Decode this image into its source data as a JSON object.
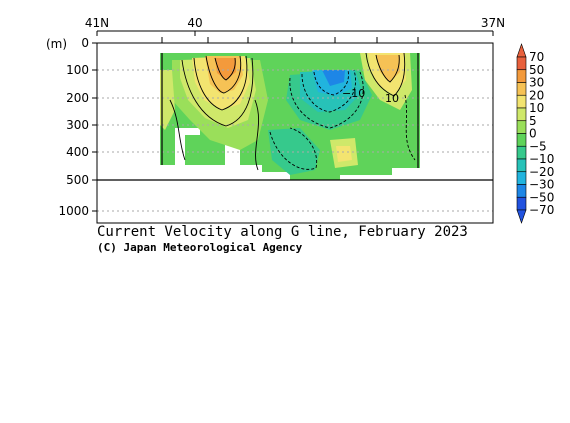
{
  "chart_data": {
    "type": "heatmap",
    "title": "Current Velocity along G line, February 2023",
    "credit": "(C) Japan Meteorological Agency",
    "ylabel": "(m)",
    "x_ticks": [
      "41N",
      "40",
      "37N"
    ],
    "y_ticks_upper": [
      "0",
      "100",
      "200",
      "300",
      "400",
      "500"
    ],
    "y_ticks_lower": [
      "1000"
    ],
    "ylim_upper": [
      0,
      500
    ],
    "y_axis_break": 500,
    "colorbar": {
      "labels": [
        "70",
        "50",
        "30",
        "20",
        "10",
        "5",
        "0",
        "−5",
        "−10",
        "−20",
        "−30",
        "−50",
        "−70"
      ],
      "colors": [
        "#e8603c",
        "#f39a3c",
        "#f6c255",
        "#f3e470",
        "#cfe86a",
        "#9adf5a",
        "#5fd35a",
        "#36c98c",
        "#27c2b8",
        "#21b4de",
        "#1d86e6",
        "#2152df"
      ]
    },
    "contour_labels": [
      "−10",
      "10"
    ],
    "grid": true
  }
}
